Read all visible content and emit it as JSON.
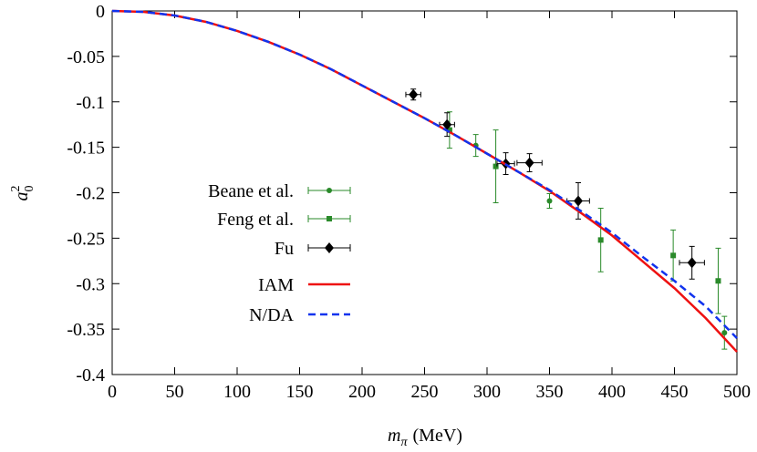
{
  "chart_data": {
    "type": "scatter_lines",
    "xlabel": {
      "symbol": "m",
      "subscript": "π",
      "unit": "(MeV)"
    },
    "ylabel": {
      "symbol": "a",
      "superscript": "2",
      "subscript": "0"
    },
    "xlim": [
      0,
      500
    ],
    "ylim": [
      -0.4,
      0
    ],
    "xticks": [
      0,
      50,
      100,
      150,
      200,
      250,
      300,
      350,
      400,
      450,
      500
    ],
    "yticks": [
      0,
      -0.05,
      -0.1,
      -0.15,
      -0.2,
      -0.25,
      -0.3,
      -0.35,
      -0.4
    ],
    "series": [
      {
        "name": "Beane et al.",
        "kind": "points",
        "marker": "circle",
        "color": "#2a8a2a",
        "x": [
          291,
          350,
          490
        ],
        "values": [
          -0.148,
          -0.209,
          -0.354
        ],
        "yerr": [
          0.012,
          0.008,
          0.018
        ]
      },
      {
        "name": "Feng et al.",
        "kind": "points",
        "marker": "square",
        "color": "#2a8a2a",
        "x": [
          270,
          307,
          391,
          449,
          485
        ],
        "values": [
          -0.131,
          -0.171,
          -0.252,
          -0.269,
          -0.297
        ],
        "yerr": [
          0.02,
          0.04,
          0.035,
          0.028,
          0.036
        ]
      },
      {
        "name": "Fu",
        "kind": "points",
        "marker": "diamond",
        "color": "#000000",
        "x": [
          241,
          268,
          315,
          334,
          373,
          464
        ],
        "values": [
          -0.092,
          -0.125,
          -0.168,
          -0.167,
          -0.209,
          -0.277
        ],
        "yerr": [
          0.006,
          0.013,
          0.012,
          0.01,
          0.02,
          0.018
        ],
        "xerr": [
          6,
          6,
          7,
          10,
          9,
          10
        ]
      },
      {
        "name": "IAM",
        "kind": "line",
        "dash": false,
        "color": "#ee1111",
        "x": [
          0,
          25,
          50,
          75,
          100,
          125,
          150,
          175,
          200,
          225,
          250,
          275,
          300,
          325,
          350,
          375,
          400,
          425,
          450,
          475,
          500
        ],
        "values": [
          0,
          -0.001,
          -0.005,
          -0.012,
          -0.022,
          -0.034,
          -0.048,
          -0.064,
          -0.082,
          -0.1,
          -0.118,
          -0.137,
          -0.157,
          -0.177,
          -0.198,
          -0.222,
          -0.247,
          -0.276,
          -0.305,
          -0.338,
          -0.375
        ]
      },
      {
        "name": "N/DA",
        "kind": "line",
        "dash": true,
        "color": "#1133ee",
        "x": [
          0,
          25,
          50,
          75,
          100,
          125,
          150,
          175,
          200,
          225,
          250,
          275,
          300,
          325,
          350,
          375,
          400,
          425,
          450,
          475,
          500
        ],
        "values": [
          0,
          -0.001,
          -0.005,
          -0.012,
          -0.022,
          -0.034,
          -0.048,
          -0.064,
          -0.082,
          -0.1,
          -0.118,
          -0.137,
          -0.157,
          -0.177,
          -0.197,
          -0.22,
          -0.244,
          -0.271,
          -0.297,
          -0.325,
          -0.36
        ]
      }
    ]
  }
}
